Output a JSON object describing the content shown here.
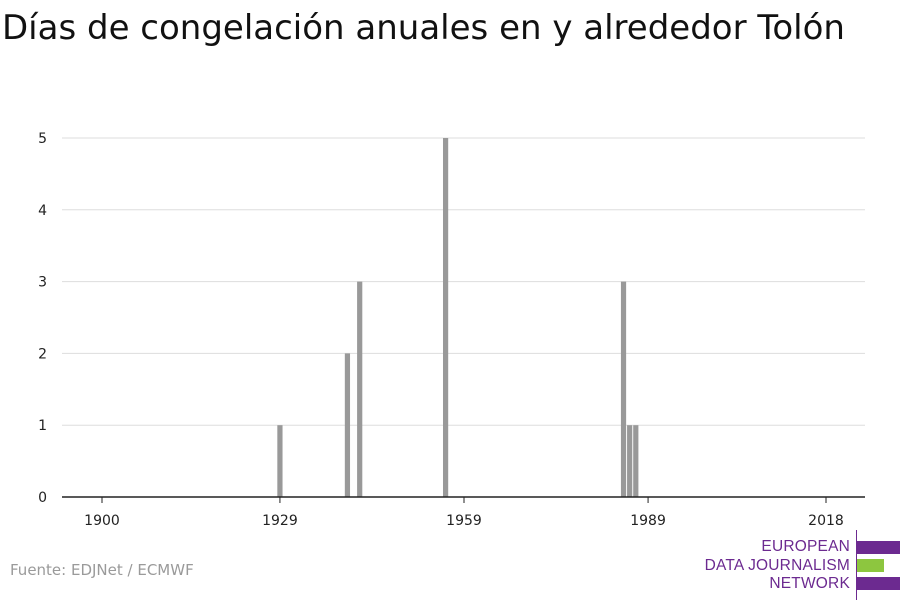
{
  "title": "Días de congelación anuales en y alrededor Tolón",
  "source": "Fuente: EDJNet / ECMWF",
  "logo": {
    "lines": [
      "EUROPEAN",
      "DATA JOURNALISM",
      "NETWORK"
    ],
    "colors": {
      "purple": "#6c2a90",
      "green": "#8dc63f"
    }
  },
  "chart_data": {
    "type": "bar",
    "title": "Días de congelación anuales en y alrededor Tolón",
    "xlabel": "",
    "ylabel": "",
    "xlim": [
      1900,
      2018
    ],
    "ylim": [
      0,
      5
    ],
    "x_ticks": [
      1900,
      1929,
      1959,
      1989,
      2018
    ],
    "y_ticks": [
      0,
      1,
      2,
      3,
      4,
      5
    ],
    "grid": true,
    "bar_color": "#999999",
    "series": [
      {
        "x": [
          1929,
          1940,
          1942,
          1956,
          1985,
          1986,
          1987
        ],
        "values": [
          1,
          2,
          3,
          5,
          3,
          1,
          1
        ]
      }
    ]
  }
}
